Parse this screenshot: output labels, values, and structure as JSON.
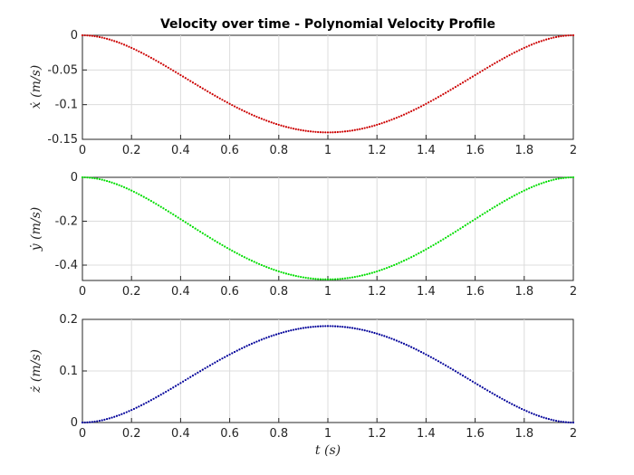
{
  "chart_data": [
    {
      "type": "scatter",
      "title": "Velocity over time - Polynomial Velocity Profile",
      "ylabel": "ẋ (m/s)",
      "xlabel": "",
      "xlim": [
        0,
        2
      ],
      "ylim": [
        -0.15,
        0
      ],
      "xticks": [
        0,
        0.2,
        0.4,
        0.6,
        0.8,
        1,
        1.2,
        1.4,
        1.6,
        1.8,
        2
      ],
      "xtick_labels": [
        "0",
        "0.2",
        "0.4",
        "0.6",
        "0.8",
        "1",
        "1.2",
        "1.4",
        "1.6",
        "1.8",
        "2"
      ],
      "yticks": [
        -0.15,
        -0.1,
        -0.05,
        0
      ],
      "ytick_labels": [
        "-0.15",
        "-0.1",
        "-0.05",
        "0"
      ],
      "grid": true,
      "series": [
        {
          "color": "#cc0000",
          "x": [
            0,
            0.2,
            0.4,
            0.6,
            0.8,
            1.0,
            1.2,
            1.4,
            1.6,
            1.8,
            2.0
          ],
          "y": [
            0,
            -0.0147,
            -0.0506,
            -0.0917,
            -0.1275,
            -0.14,
            -0.1275,
            -0.0917,
            -0.0506,
            -0.0147,
            0
          ]
        }
      ]
    },
    {
      "type": "scatter",
      "title": "",
      "ylabel": "ẏ (m/s)",
      "xlabel": "",
      "xlim": [
        0,
        2
      ],
      "ylim": [
        -0.47,
        0
      ],
      "xticks": [
        0,
        0.2,
        0.4,
        0.6,
        0.8,
        1,
        1.2,
        1.4,
        1.6,
        1.8,
        2
      ],
      "xtick_labels": [
        "0",
        "0.2",
        "0.4",
        "0.6",
        "0.8",
        "1",
        "1.2",
        "1.4",
        "1.6",
        "1.8",
        "2"
      ],
      "yticks": [
        -0.4,
        -0.2,
        0
      ],
      "ytick_labels": [
        "-0.4",
        "-0.2",
        "0"
      ],
      "grid": true,
      "series": [
        {
          "color": "#00dd00",
          "x": [
            0,
            0.2,
            0.4,
            0.6,
            0.8,
            1.0,
            1.2,
            1.4,
            1.6,
            1.8,
            2.0
          ],
          "y": [
            0,
            -0.049,
            -0.1688,
            -0.3056,
            -0.425,
            -0.465,
            -0.425,
            -0.3056,
            -0.1688,
            -0.049,
            0
          ]
        }
      ]
    },
    {
      "type": "scatter",
      "title": "",
      "ylabel": "ż (m/s)",
      "xlabel": "t (s)",
      "xlim": [
        0,
        2
      ],
      "ylim": [
        0,
        0.2
      ],
      "xticks": [
        0,
        0.2,
        0.4,
        0.6,
        0.8,
        1,
        1.2,
        1.4,
        1.6,
        1.8,
        2
      ],
      "xtick_labels": [
        "0",
        "0.2",
        "0.4",
        "0.6",
        "0.8",
        "1",
        "1.2",
        "1.4",
        "1.6",
        "1.8",
        "2"
      ],
      "yticks": [
        0,
        0.1,
        0.2
      ],
      "ytick_labels": [
        "0",
        "0.1",
        "0.2"
      ],
      "grid": true,
      "series": [
        {
          "color": "#000099",
          "x": [
            0,
            0.2,
            0.4,
            0.6,
            0.8,
            1.0,
            1.2,
            1.4,
            1.6,
            1.8,
            2.0
          ],
          "y": [
            0,
            0.0197,
            0.0679,
            0.1229,
            0.171,
            0.187,
            0.171,
            0.1229,
            0.0679,
            0.0197,
            0
          ]
        }
      ]
    }
  ]
}
